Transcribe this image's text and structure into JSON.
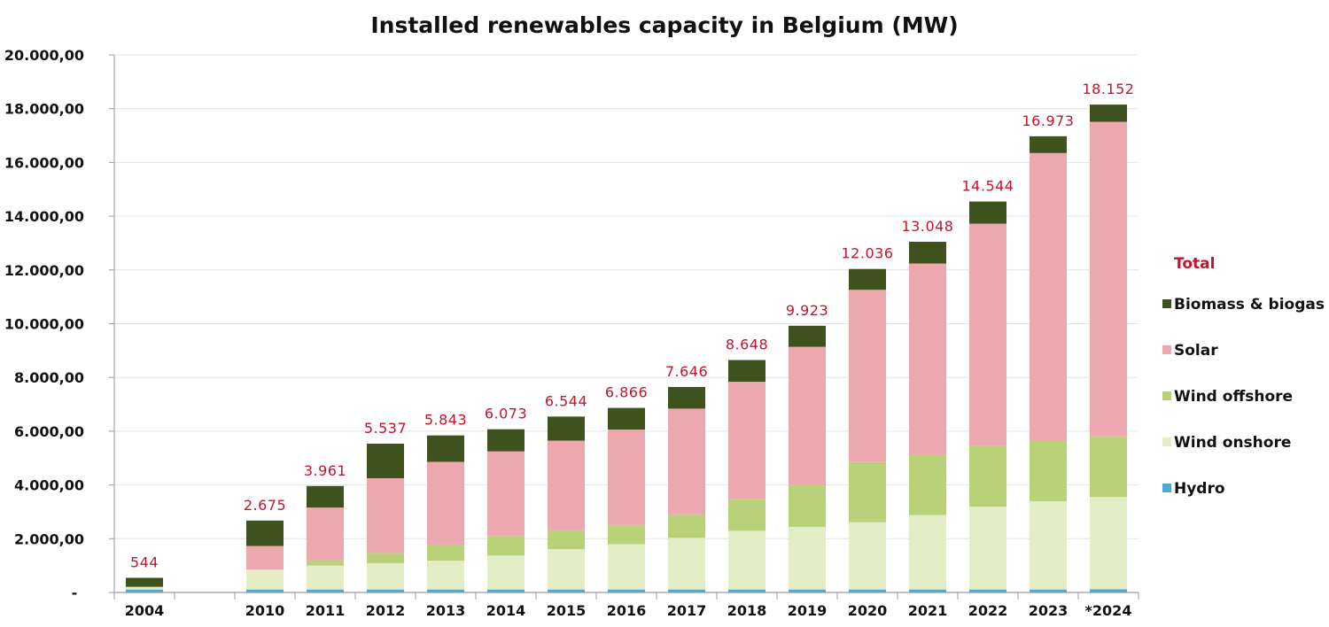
{
  "chart_data": {
    "type": "bar",
    "stacked": true,
    "title": "Installed renewables capacity in Belgium (MW)",
    "xlabel": "",
    "ylabel": "",
    "ylim": [
      0,
      20000
    ],
    "yticks": [
      {
        "value": 0,
        "label": "-"
      },
      {
        "value": 2000,
        "label": "2.000,00"
      },
      {
        "value": 4000,
        "label": "4.000,00"
      },
      {
        "value": 6000,
        "label": "6.000,00"
      },
      {
        "value": 8000,
        "label": "8.000,00"
      },
      {
        "value": 10000,
        "label": "10.000,00"
      },
      {
        "value": 12000,
        "label": "12.000,00"
      },
      {
        "value": 14000,
        "label": "14.000,00"
      },
      {
        "value": 16000,
        "label": "16.000,00"
      },
      {
        "value": 18000,
        "label": "18.000,00"
      },
      {
        "value": 20000,
        "label": "20.000,00"
      }
    ],
    "grid": true,
    "legend_position": "right",
    "categories": [
      "2004",
      "",
      "2010",
      "2011",
      "2012",
      "2013",
      "2014",
      "2015",
      "2016",
      "2017",
      "2018",
      "2019",
      "2020",
      "2021",
      "2022",
      "2023",
      "*2024"
    ],
    "series": [
      {
        "name": "Hydro",
        "color": "#4ba8d8",
        "values": [
          110,
          null,
          110,
          110,
          110,
          110,
          110,
          110,
          110,
          110,
          110,
          110,
          110,
          110,
          110,
          110,
          120
        ]
      },
      {
        "name": "Wind onshore",
        "color": "#e3edc6",
        "values": [
          100,
          null,
          740,
          890,
          980,
          1070,
          1260,
          1500,
          1690,
          1920,
          2180,
          2330,
          2500,
          2770,
          3080,
          3280,
          3430
        ]
      },
      {
        "name": "Wind offshore",
        "color": "#b9d27a",
        "values": [
          0,
          null,
          0,
          200,
          380,
          600,
          710,
          710,
          710,
          880,
          1180,
          1560,
          2260,
          2260,
          2260,
          2260,
          2260
        ]
      },
      {
        "name": "Solar",
        "color": "#eca8ae",
        "values": [
          0,
          null,
          880,
          1960,
          2780,
          3080,
          3170,
          3330,
          3550,
          3930,
          4370,
          5140,
          6390,
          7100,
          8270,
          10700,
          11700
        ]
      },
      {
        "name": "Biomass & biogas",
        "color": "#3e521d",
        "values": [
          334,
          null,
          945,
          801,
          1287,
          983,
          823,
          894,
          806,
          806,
          808,
          783,
          776,
          808,
          824,
          623,
          642
        ]
      }
    ],
    "totals": [
      {
        "value": 544,
        "label": "544"
      },
      null,
      {
        "value": 2675,
        "label": "2.675"
      },
      {
        "value": 3961,
        "label": "3.961"
      },
      {
        "value": 5537,
        "label": "5.537"
      },
      {
        "value": 5843,
        "label": "5.843"
      },
      {
        "value": 6073,
        "label": "6.073"
      },
      {
        "value": 6544,
        "label": "6.544"
      },
      {
        "value": 6866,
        "label": "6.866"
      },
      {
        "value": 7646,
        "label": "7.646"
      },
      {
        "value": 8648,
        "label": "8.648"
      },
      {
        "value": 9923,
        "label": "9.923"
      },
      {
        "value": 12036,
        "label": "12.036"
      },
      {
        "value": 13048,
        "label": "13.048"
      },
      {
        "value": 14544,
        "label": "14.544"
      },
      {
        "value": 16973,
        "label": "16.973"
      },
      {
        "value": 18152,
        "label": "18.152"
      }
    ],
    "legend": {
      "total_label": "Total",
      "total_color": "#c0152f",
      "entries": [
        "Biomass & biogas",
        "Solar",
        "Wind offshore",
        "Wind onshore",
        "Hydro"
      ]
    }
  }
}
